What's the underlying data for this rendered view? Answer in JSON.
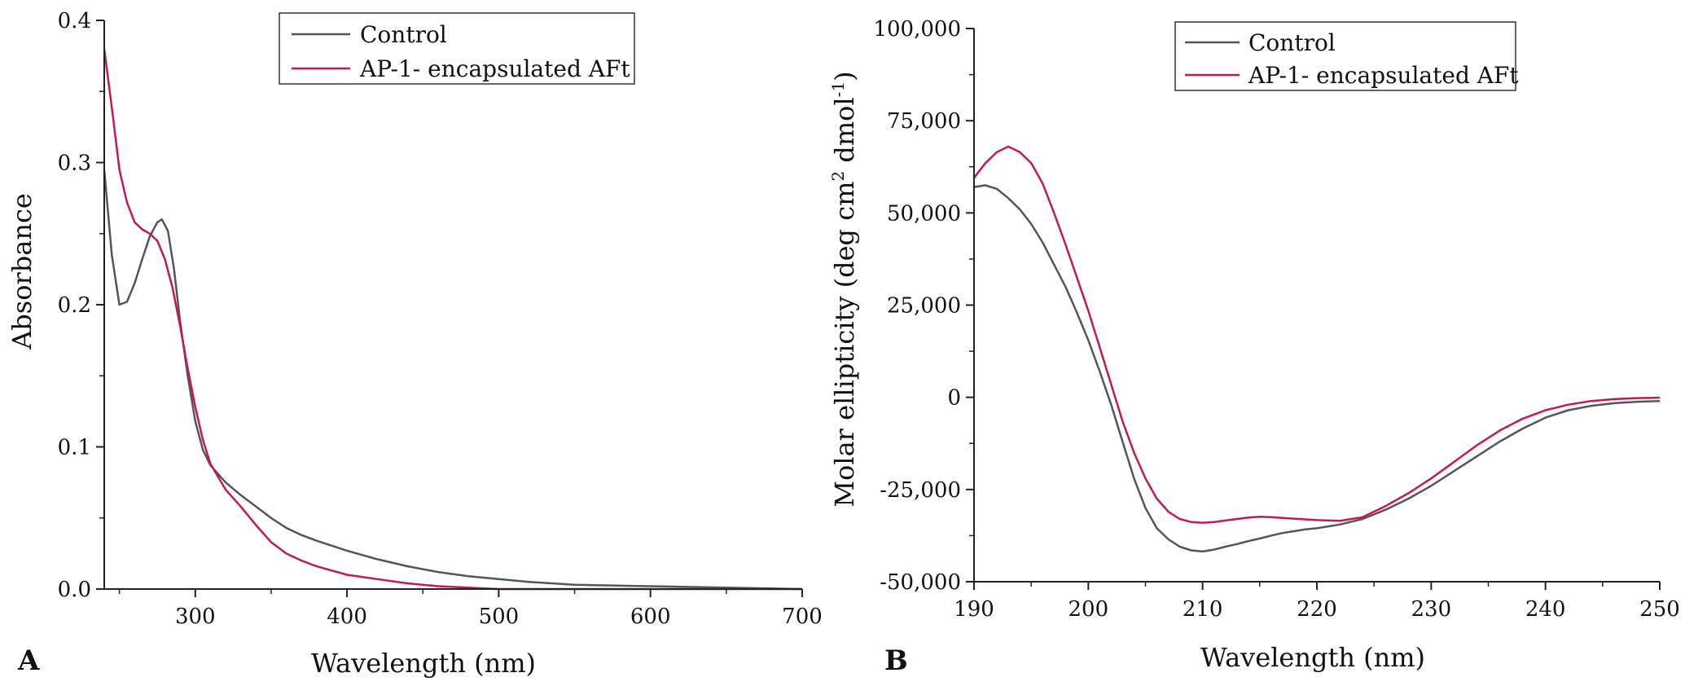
{
  "panels": [
    {
      "letter": "A"
    },
    {
      "letter": "B"
    }
  ],
  "chart_data": [
    {
      "type": "line",
      "xlabel": "Wavelength (nm)",
      "ylabel": "Absorbance",
      "xlim": [
        240,
        700
      ],
      "ylim": [
        0,
        0.4
      ],
      "xticks": [
        300,
        400,
        500,
        600,
        700
      ],
      "yticks": [
        0.0,
        0.1,
        0.2,
        0.3,
        0.4
      ],
      "xtick_labels": [
        "300",
        "400",
        "500",
        "600",
        "700"
      ],
      "ytick_labels": [
        "0.0",
        "0.1",
        "0.2",
        "0.3",
        "0.4"
      ],
      "legend_position": "top-right",
      "series": [
        {
          "name": "Control",
          "color": "#555555",
          "x": [
            240,
            245,
            250,
            255,
            260,
            265,
            270,
            275,
            278,
            282,
            286,
            290,
            295,
            300,
            305,
            310,
            320,
            330,
            340,
            350,
            360,
            370,
            380,
            400,
            420,
            440,
            460,
            480,
            500,
            520,
            550,
            600,
            650,
            700
          ],
          "y": [
            0.295,
            0.235,
            0.2,
            0.202,
            0.215,
            0.232,
            0.248,
            0.258,
            0.26,
            0.252,
            0.225,
            0.188,
            0.15,
            0.118,
            0.098,
            0.087,
            0.075,
            0.066,
            0.058,
            0.05,
            0.043,
            0.038,
            0.034,
            0.027,
            0.021,
            0.016,
            0.012,
            0.009,
            0.007,
            0.005,
            0.003,
            0.002,
            0.001,
            0.0
          ]
        },
        {
          "name": "AP-1- encapsulated AFt",
          "color": "#c2185b",
          "x": [
            240,
            243,
            246,
            250,
            255,
            260,
            265,
            270,
            275,
            280,
            285,
            290,
            295,
            300,
            305,
            310,
            320,
            330,
            340,
            350,
            360,
            370,
            380,
            400,
            420,
            440,
            460,
            480,
            500,
            520,
            550,
            600,
            700
          ],
          "y": [
            0.38,
            0.355,
            0.33,
            0.295,
            0.272,
            0.258,
            0.253,
            0.25,
            0.245,
            0.232,
            0.212,
            0.185,
            0.155,
            0.128,
            0.105,
            0.088,
            0.07,
            0.058,
            0.045,
            0.033,
            0.025,
            0.02,
            0.016,
            0.01,
            0.007,
            0.004,
            0.002,
            0.001,
            0.0,
            0.0,
            0.0,
            0.0,
            0.0
          ]
        }
      ]
    },
    {
      "type": "line",
      "xlabel": "Wavelength (nm)",
      "ylabel": "Molar ellipticity (deg cm",
      "ylabel_sup1": "2",
      "ylabel_mid": " dmol",
      "ylabel_sup2": "-1",
      "ylabel_end": ")",
      "xlim": [
        190,
        250
      ],
      "ylim": [
        -50000,
        100000
      ],
      "xticks": [
        190,
        200,
        210,
        220,
        230,
        240,
        250
      ],
      "yticks": [
        -50000,
        -25000,
        0,
        25000,
        50000,
        75000,
        100000
      ],
      "xtick_labels": [
        "190",
        "200",
        "210",
        "220",
        "230",
        "240",
        "250"
      ],
      "ytick_labels": [
        "-50,000",
        "-25,000",
        "0",
        "25,000",
        "50,000",
        "75,000",
        "100,000"
      ],
      "legend_position": "top-center",
      "series": [
        {
          "name": "Control",
          "color": "#555555",
          "x": [
            190,
            191,
            192,
            193,
            194,
            195,
            196,
            197,
            198,
            199,
            200,
            201,
            202,
            203,
            204,
            205,
            206,
            207,
            208,
            209,
            210,
            211,
            212,
            213,
            214,
            215,
            216,
            217,
            218,
            219,
            220,
            222,
            224,
            226,
            228,
            230,
            232,
            234,
            236,
            238,
            240,
            242,
            244,
            246,
            248,
            250
          ],
          "y": [
            57000,
            57500,
            56500,
            54000,
            51000,
            47000,
            42000,
            36000,
            30000,
            23000,
            15500,
            7000,
            -2000,
            -12000,
            -22000,
            -30000,
            -35500,
            -38500,
            -40500,
            -41500,
            -41800,
            -41300,
            -40500,
            -39800,
            -39000,
            -38300,
            -37500,
            -36800,
            -36300,
            -35800,
            -35500,
            -34500,
            -33000,
            -30500,
            -27500,
            -24000,
            -20000,
            -16000,
            -12000,
            -8500,
            -5500,
            -3500,
            -2300,
            -1600,
            -1200,
            -1000
          ]
        },
        {
          "name": "AP-1- encapsulated AFt",
          "color": "#c2185b",
          "x": [
            190,
            191,
            192,
            193,
            194,
            195,
            196,
            197,
            198,
            199,
            200,
            201,
            202,
            203,
            204,
            205,
            206,
            207,
            208,
            209,
            210,
            211,
            212,
            213,
            214,
            215,
            216,
            217,
            218,
            219,
            220,
            222,
            224,
            226,
            228,
            230,
            232,
            234,
            236,
            238,
            240,
            242,
            244,
            246,
            248,
            250
          ],
          "y": [
            59500,
            63500,
            66500,
            68000,
            66500,
            63500,
            58000,
            50000,
            41500,
            32500,
            23500,
            13500,
            3500,
            -6500,
            -15000,
            -22000,
            -27500,
            -31000,
            -33000,
            -33800,
            -34000,
            -33800,
            -33400,
            -33000,
            -32600,
            -32400,
            -32500,
            -32700,
            -32900,
            -33100,
            -33300,
            -33500,
            -32500,
            -29500,
            -26000,
            -22000,
            -17500,
            -13000,
            -9000,
            -5800,
            -3500,
            -2000,
            -1000,
            -500,
            -200,
            -100
          ]
        }
      ]
    }
  ]
}
